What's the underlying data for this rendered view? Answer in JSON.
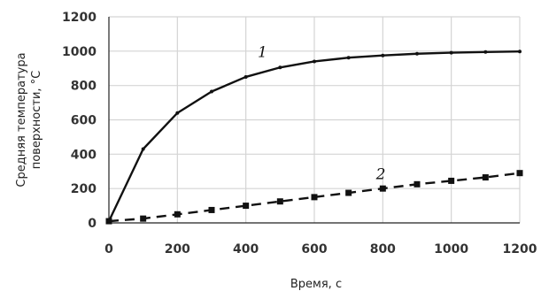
{
  "chart_data": {
    "type": "line",
    "title": "",
    "xlabel": "Время, с",
    "ylabel": [
      "Средняя температура",
      "поверхности, °С"
    ],
    "xlim": [
      0,
      1200
    ],
    "ylim": [
      0,
      1200
    ],
    "x_ticks": [
      "0",
      "200",
      "400",
      "600",
      "800",
      "1000",
      "1200"
    ],
    "y_ticks": [
      "0",
      "200",
      "400",
      "600",
      "800",
      "1000",
      "1200"
    ],
    "grid": true,
    "series": [
      {
        "name": "1",
        "line_style": "solid",
        "color": "#111111",
        "x": [
          0,
          100,
          200,
          300,
          400,
          500,
          600,
          700,
          800,
          900,
          1000,
          1100,
          1200
        ],
        "y": [
          10,
          430,
          640,
          765,
          850,
          905,
          940,
          962,
          975,
          985,
          991,
          995,
          998
        ]
      },
      {
        "name": "2",
        "line_style": "dashed",
        "color": "#111111",
        "x": [
          0,
          100,
          200,
          300,
          400,
          500,
          600,
          700,
          800,
          900,
          1000,
          1100,
          1200
        ],
        "y": [
          10,
          25,
          50,
          75,
          100,
          125,
          150,
          175,
          200,
          225,
          245,
          265,
          290
        ]
      }
    ]
  }
}
